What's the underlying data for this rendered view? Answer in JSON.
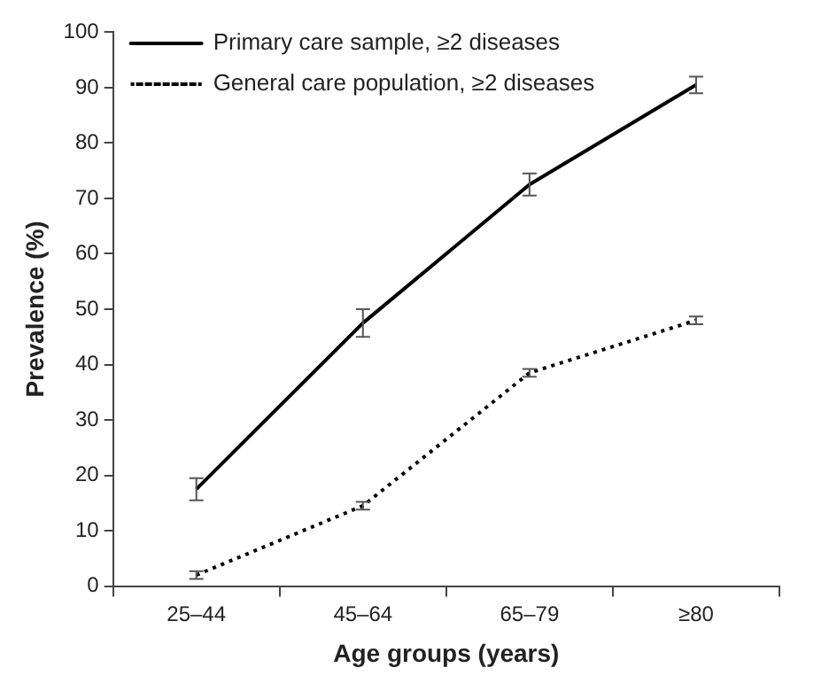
{
  "chart_data": {
    "type": "line",
    "xlabel": "Age groups (years)",
    "ylabel": "Prevalence (%)",
    "categories": [
      "25–44",
      "45–64",
      "65–79",
      "≥80"
    ],
    "series": [
      {
        "name": "Primary care sample, ≥2 diseases",
        "color": "#000000",
        "line_style": "solid",
        "values": [
          17.5,
          47.5,
          72.5,
          90.5
        ],
        "errors": [
          2,
          2.5,
          2,
          1.5
        ]
      },
      {
        "name": "General care population, ≥2 diseases",
        "color": "#000000",
        "line_style": "dotted",
        "values": [
          2,
          14.5,
          38.5,
          48
        ],
        "errors": [
          0.7,
          0.7,
          0.7,
          0.7
        ]
      }
    ],
    "ylim": [
      0,
      100
    ],
    "yticks": [
      0,
      10,
      20,
      30,
      40,
      50,
      60,
      70,
      80,
      90,
      100
    ],
    "grid": false,
    "legend": "top left"
  }
}
